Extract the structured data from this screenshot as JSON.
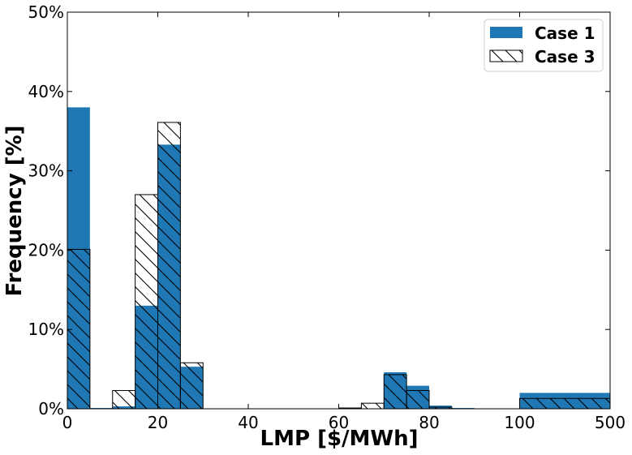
{
  "chart_data": {
    "type": "bar",
    "xlabel": "LMP [$/MWh]",
    "ylabel": "Frequency [%]",
    "ylim": [
      0,
      50
    ],
    "y_ticks": [
      "0%",
      "10%",
      "20%",
      "30%",
      "40%",
      "50%"
    ],
    "x_ticks": [
      "0",
      "20",
      "40",
      "60",
      "80",
      "100",
      "500"
    ],
    "x_scale": "piecewise: 0–100 linear, 100–500 compressed into the last segment",
    "grid": false,
    "legend_position": "top-right",
    "series": [
      {
        "name": "Case 1",
        "style": "solid",
        "color": "#1f77b4",
        "bins": [
          {
            "x0": 0,
            "x1": 5,
            "value": 38.0
          },
          {
            "x0": 5,
            "x1": 10,
            "value": 0.1
          },
          {
            "x0": 10,
            "x1": 15,
            "value": 0.3
          },
          {
            "x0": 15,
            "x1": 20,
            "value": 13.0
          },
          {
            "x0": 20,
            "x1": 25,
            "value": 33.3
          },
          {
            "x0": 25,
            "x1": 30,
            "value": 5.3
          },
          {
            "x0": 70,
            "x1": 75,
            "value": 4.6
          },
          {
            "x0": 75,
            "x1": 80,
            "value": 2.9
          },
          {
            "x0": 80,
            "x1": 85,
            "value": 0.4
          },
          {
            "x0": 85,
            "x1": 90,
            "value": 0.1
          },
          {
            "x0": 100,
            "x1": 500,
            "value": 2.0
          }
        ]
      },
      {
        "name": "Case 3",
        "style": "hatched",
        "color": "#000000",
        "bins": [
          {
            "x0": 0,
            "x1": 5,
            "value": 20.1
          },
          {
            "x0": 10,
            "x1": 15,
            "value": 2.3
          },
          {
            "x0": 15,
            "x1": 20,
            "value": 27.0
          },
          {
            "x0": 20,
            "x1": 25,
            "value": 36.1
          },
          {
            "x0": 25,
            "x1": 30,
            "value": 5.8
          },
          {
            "x0": 60,
            "x1": 65,
            "value": 0.1
          },
          {
            "x0": 65,
            "x1": 70,
            "value": 0.7
          },
          {
            "x0": 70,
            "x1": 75,
            "value": 4.3
          },
          {
            "x0": 75,
            "x1": 80,
            "value": 2.3
          },
          {
            "x0": 80,
            "x1": 85,
            "value": 0.2
          },
          {
            "x0": 100,
            "x1": 500,
            "value": 1.3
          }
        ]
      }
    ]
  }
}
